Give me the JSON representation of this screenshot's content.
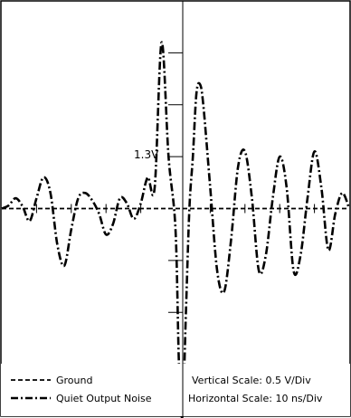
{
  "chart_data": {
    "type": "line",
    "title": "",
    "xlabel": "",
    "ylabel": "",
    "x_unit": "ns",
    "y_unit": "V",
    "xlim": [
      -50,
      50
    ],
    "ylim": [
      -2.0,
      2.0
    ],
    "grid": false,
    "annotation": "1.3V",
    "vertical_scale_label": "Vertical Scale: 0.5 V/Div",
    "horizontal_scale_label": "Horizontal Scale: 10 ns/Div",
    "legend_position": "bottom-left",
    "series": [
      {
        "name": "Ground",
        "style": "dashed",
        "x": [
          -50,
          50
        ],
        "y": [
          0.0,
          0.0
        ]
      },
      {
        "name": "Quiet Output Noise",
        "style": "dash-dot",
        "x": [
          -50,
          -48,
          -46,
          -44,
          -42,
          -40,
          -38,
          -36,
          -34,
          -32,
          -30,
          -28,
          -26,
          -24,
          -22,
          -20,
          -18,
          -16,
          -14,
          -12,
          -10,
          -8,
          -6,
          -4,
          -2,
          0,
          1,
          2,
          3,
          4,
          5,
          6,
          7,
          8,
          10,
          12,
          14,
          16,
          18,
          20,
          22,
          24,
          26,
          28,
          30,
          32,
          34,
          36,
          38,
          40,
          42,
          44,
          46,
          48,
          50
        ],
        "y": [
          0.0,
          0.03,
          0.1,
          0.02,
          -0.12,
          0.1,
          0.3,
          0.15,
          -0.35,
          -0.55,
          -0.2,
          0.1,
          0.15,
          0.08,
          -0.05,
          -0.25,
          -0.15,
          0.1,
          0.05,
          -0.1,
          0.05,
          0.3,
          0.2,
          1.6,
          0.5,
          -0.2,
          -1.5,
          -2.0,
          -1.0,
          0.0,
          0.5,
          1.1,
          1.2,
          1.0,
          0.2,
          -0.6,
          -0.8,
          -0.3,
          0.4,
          0.55,
          0.1,
          -0.6,
          -0.45,
          0.1,
          0.5,
          0.2,
          -0.6,
          -0.45,
          0.1,
          0.55,
          0.2,
          -0.4,
          -0.05,
          0.15,
          0.0
        ]
      }
    ]
  }
}
